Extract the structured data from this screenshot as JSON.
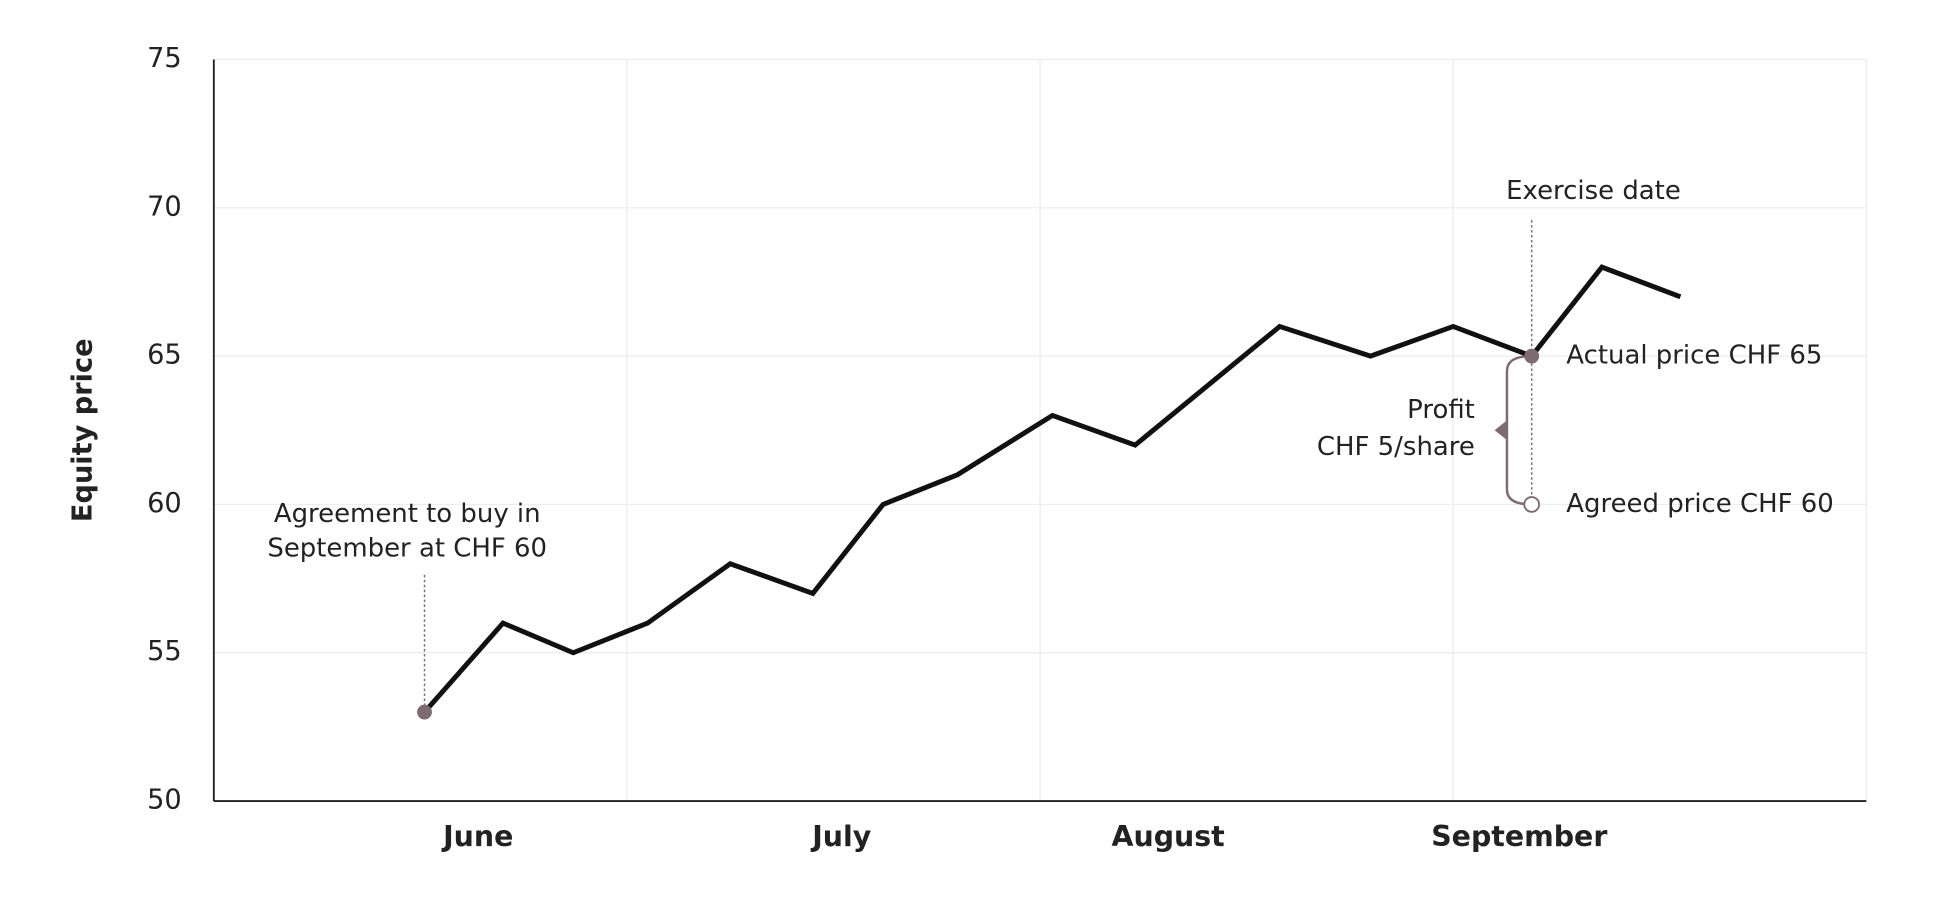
{
  "chart_data": {
    "type": "line",
    "y_label": "Equity price",
    "x": [
      0.51,
      0.7,
      0.87,
      1.05,
      1.25,
      1.45,
      1.62,
      1.8,
      2.03,
      2.23,
      2.58,
      2.8,
      3.0,
      3.19,
      3.36,
      3.55
    ],
    "values": [
      53,
      56,
      55,
      56,
      58,
      57,
      60,
      61,
      63,
      62,
      66,
      65,
      66,
      65,
      68,
      67
    ],
    "color": "#111111",
    "xlim": [
      0,
      4
    ],
    "xticks": [
      {
        "value": 0.64,
        "label": "June"
      },
      {
        "value": 1.52,
        "label": "July"
      },
      {
        "value": 2.31,
        "label": "August"
      },
      {
        "value": 3.16,
        "label": "September"
      }
    ],
    "ylim": [
      50,
      75
    ],
    "yticks": [
      50,
      55,
      60,
      65,
      70,
      75
    ],
    "grid": true,
    "annotations": [
      {
        "text": [
          "Agreement to buy in",
          "September at CHF 60"
        ],
        "x": 0.51,
        "y": 53
      },
      {
        "text": "Exercise date",
        "x": 3.19
      },
      {
        "text": "Actual price CHF 65",
        "x": 3.19,
        "y": 65
      },
      {
        "text": "Agreed price CHF 60",
        "x": 3.19,
        "y": 60
      },
      {
        "text": [
          "Profit",
          "CHF 5/share"
        ],
        "x": 3.19,
        "y": [
          60,
          65
        ]
      }
    ],
    "annotation_color": "#7d6b72"
  }
}
